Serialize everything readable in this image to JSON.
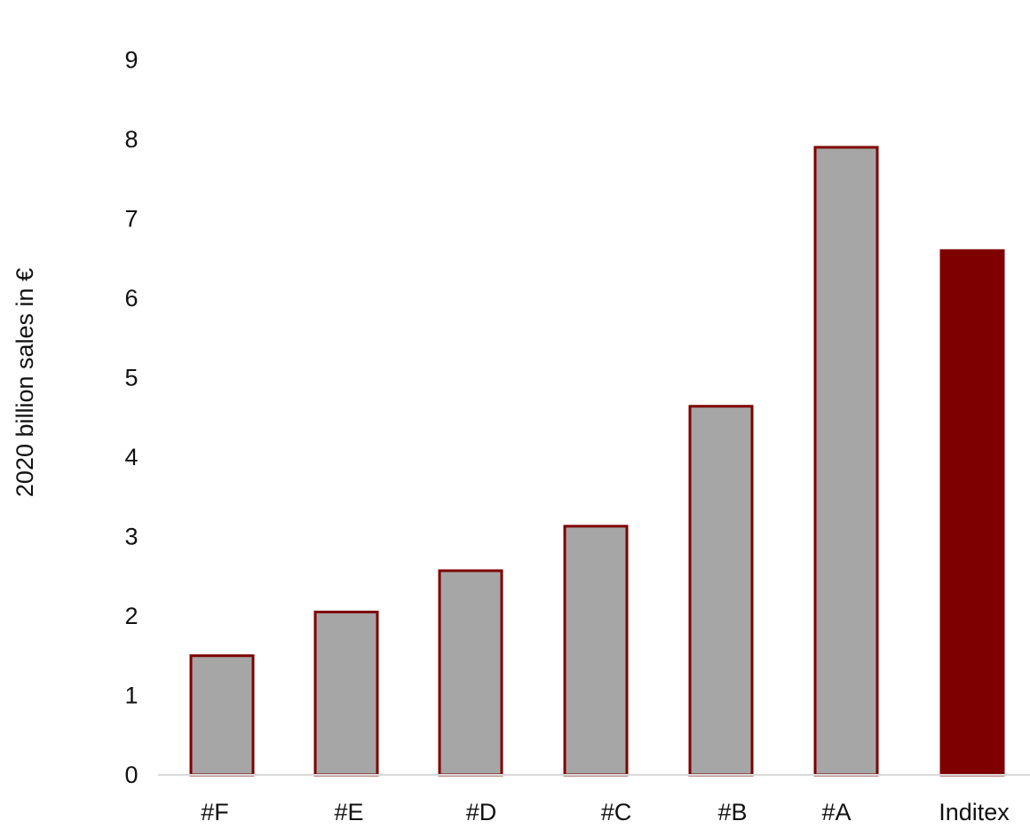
{
  "chart_data": {
    "type": "bar",
    "title": "",
    "xlabel": "",
    "ylabel": "2020 billion sales in €",
    "categories": [
      "#F",
      "#E",
      "#D",
      "#C",
      "#B",
      "#A",
      "Inditex"
    ],
    "values": [
      1.5,
      2.05,
      2.57,
      3.13,
      4.64,
      7.9,
      6.6
    ],
    "highlight_category": "Inditex",
    "ylim": [
      0,
      9
    ],
    "yticks": [
      0,
      1,
      2,
      3,
      4,
      5,
      6,
      7,
      8,
      9
    ],
    "grid": false,
    "legend": "none",
    "colors": {
      "bar_fill": "#a6a6a6",
      "bar_outline": "#7f0000",
      "highlight_fill": "#7f0000",
      "axis_line": "#d9d9d9",
      "text": "#111111"
    }
  }
}
